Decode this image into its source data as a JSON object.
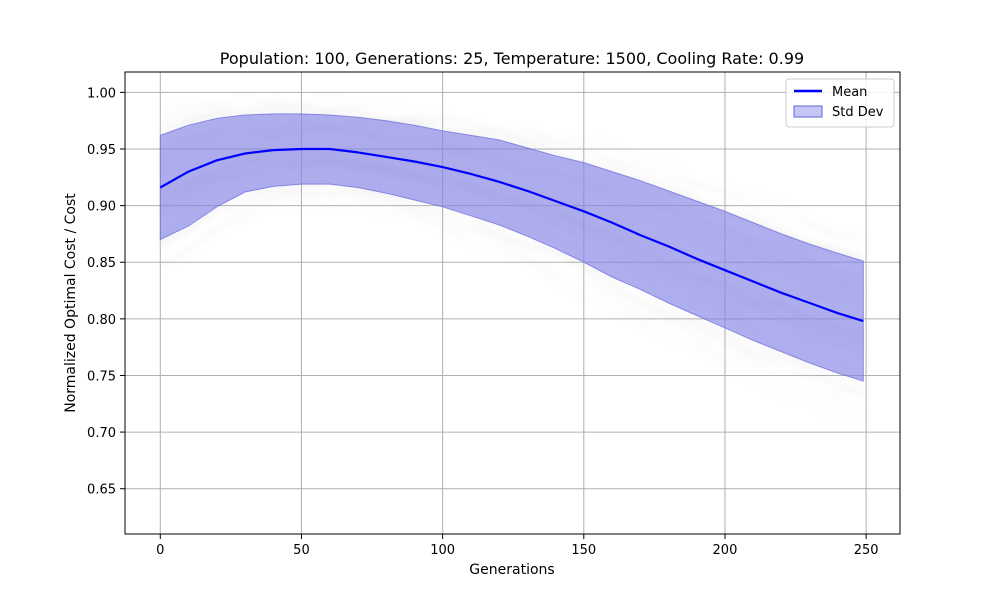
{
  "chart_data": {
    "type": "line",
    "title": "Population: 100, Generations: 25, Temperature: 1500, Cooling Rate: 0.99",
    "xlabel": "Generations",
    "ylabel": "Normalized Optimal Cost / Cost",
    "xlim": [
      -12.5,
      262
    ],
    "ylim": [
      0.61,
      1.018
    ],
    "xticks": [
      0,
      50,
      100,
      150,
      200,
      250
    ],
    "yticks": [
      0.65,
      0.7,
      0.75,
      0.8,
      0.85,
      0.9,
      0.95,
      1.0
    ],
    "grid": true,
    "legend_position": "top-right",
    "colors": {
      "mean": "#0000ff",
      "band_fill": "#8080e6",
      "band_edge": "#6666dd",
      "background_runs": "#c8c8c8",
      "grid": "#b0b0b0"
    },
    "series": [
      {
        "name": "Mean",
        "kind": "line",
        "x": [
          0,
          10,
          20,
          30,
          40,
          50,
          60,
          70,
          80,
          90,
          100,
          110,
          120,
          130,
          140,
          150,
          160,
          170,
          180,
          190,
          200,
          210,
          220,
          230,
          240,
          249
        ],
        "y": [
          0.916,
          0.93,
          0.94,
          0.946,
          0.949,
          0.95,
          0.95,
          0.947,
          0.943,
          0.939,
          0.934,
          0.928,
          0.921,
          0.913,
          0.904,
          0.895,
          0.885,
          0.874,
          0.864,
          0.853,
          0.843,
          0.833,
          0.823,
          0.814,
          0.805,
          0.798
        ]
      },
      {
        "name": "Std Dev",
        "kind": "band",
        "x": [
          0,
          10,
          20,
          30,
          40,
          50,
          60,
          70,
          80,
          90,
          100,
          110,
          120,
          130,
          140,
          150,
          160,
          170,
          180,
          190,
          200,
          210,
          220,
          230,
          240,
          249
        ],
        "upper": [
          0.962,
          0.971,
          0.977,
          0.98,
          0.981,
          0.981,
          0.98,
          0.978,
          0.975,
          0.971,
          0.966,
          0.962,
          0.958,
          0.951,
          0.944,
          0.938,
          0.93,
          0.922,
          0.913,
          0.904,
          0.895,
          0.885,
          0.875,
          0.866,
          0.858,
          0.851
        ],
        "lower": [
          0.87,
          0.882,
          0.899,
          0.912,
          0.917,
          0.919,
          0.919,
          0.916,
          0.911,
          0.905,
          0.899,
          0.891,
          0.883,
          0.873,
          0.862,
          0.85,
          0.837,
          0.826,
          0.814,
          0.803,
          0.792,
          0.781,
          0.771,
          0.761,
          0.752,
          0.745
        ]
      }
    ]
  }
}
